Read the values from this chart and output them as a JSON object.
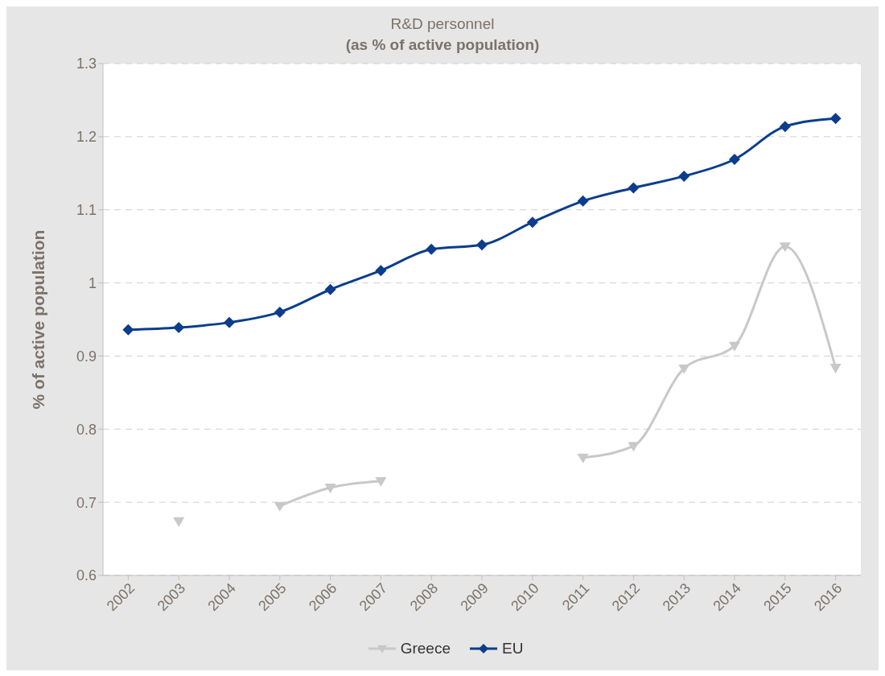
{
  "chart_data": {
    "type": "line",
    "title": "R&D personnel",
    "subtitle": "(as % of active population)",
    "ylabel": "% of active population",
    "categories": [
      "2002",
      "2003",
      "2004",
      "2005",
      "2006",
      "2007",
      "2008",
      "2009",
      "2010",
      "2011",
      "2012",
      "2013",
      "2014",
      "2015",
      "2016"
    ],
    "series": [
      {
        "name": "Greece",
        "color": "#c8c8c8",
        "marker": "triangle",
        "values": [
          null,
          0.674,
          null,
          0.695,
          0.72,
          0.729,
          null,
          null,
          null,
          0.761,
          0.777,
          0.883,
          0.914,
          1.05,
          0.884
        ]
      },
      {
        "name": "EU",
        "color": "#0b3d8c",
        "marker": "diamond",
        "values": [
          0.936,
          0.939,
          0.946,
          0.96,
          0.991,
          1.017,
          1.046,
          1.052,
          1.083,
          1.112,
          1.13,
          1.146,
          1.169,
          1.214,
          1.225
        ]
      }
    ],
    "ylim": [
      0.6,
      1.3
    ],
    "yticks": [
      0.6,
      0.7,
      0.8,
      0.9,
      1,
      1.1,
      1.2,
      1.3
    ],
    "grid": "y",
    "legend": "bottom",
    "line_style": "solid"
  }
}
